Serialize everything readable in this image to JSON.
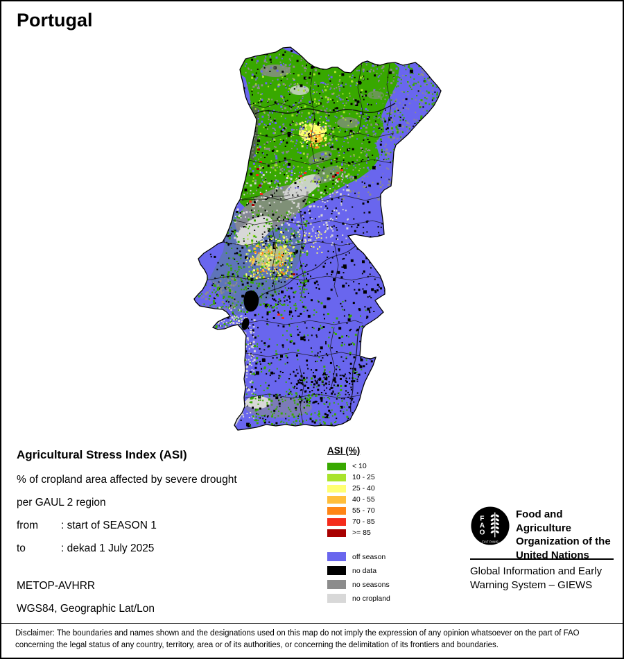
{
  "title": "Portugal",
  "info": {
    "heading": "Agricultural Stress Index (ASI)",
    "line1": "% of cropland area affected by severe drought",
    "line2": "per GAUL 2 region",
    "from_label": "from",
    "from_value": ": start of SEASON 1",
    "to_label": "to",
    "to_value": ": dekad 1 July 2025",
    "sensor": "METOP-AVHRR",
    "projection": "WGS84, Geographic Lat/Lon"
  },
  "legend": {
    "title": "ASI (%)",
    "classes": [
      {
        "label": "< 10",
        "color": "#38A800"
      },
      {
        "label": "10 - 25",
        "color": "#A9E32C"
      },
      {
        "label": "25 - 40",
        "color": "#FFFF73"
      },
      {
        "label": "40 - 55",
        "color": "#FFBE3B"
      },
      {
        "label": "55 - 70",
        "color": "#FF8516"
      },
      {
        "label": "70 - 85",
        "color": "#F52C1B"
      },
      {
        "label": ">= 85",
        "color": "#A80000"
      }
    ],
    "statuses": [
      {
        "label": "off season",
        "color": "#6966EE"
      },
      {
        "label": "no data",
        "color": "#000000"
      },
      {
        "label": "no seasons",
        "color": "#8C8C8C"
      },
      {
        "label": "no cropland",
        "color": "#D8D8D8"
      }
    ]
  },
  "fao": {
    "logo_acronym": "FAO",
    "logo_motto": "FIAT PANIS",
    "org_lines": [
      "Food and Agriculture",
      "Organization of the",
      "United Nations"
    ],
    "giews_lines": [
      "Global Information and Early",
      "Warning System – GIEWS"
    ]
  },
  "disclaimer": {
    "line1": "Disclaimer: The boundaries and names shown and the designations used on this map do not imply the expression of any opinion whatsoever on the part of FAO",
    "line2": "concerning the legal status of any country, territory, area or of its authorities, or concerning the delimitation of its frontiers and boundaries."
  }
}
